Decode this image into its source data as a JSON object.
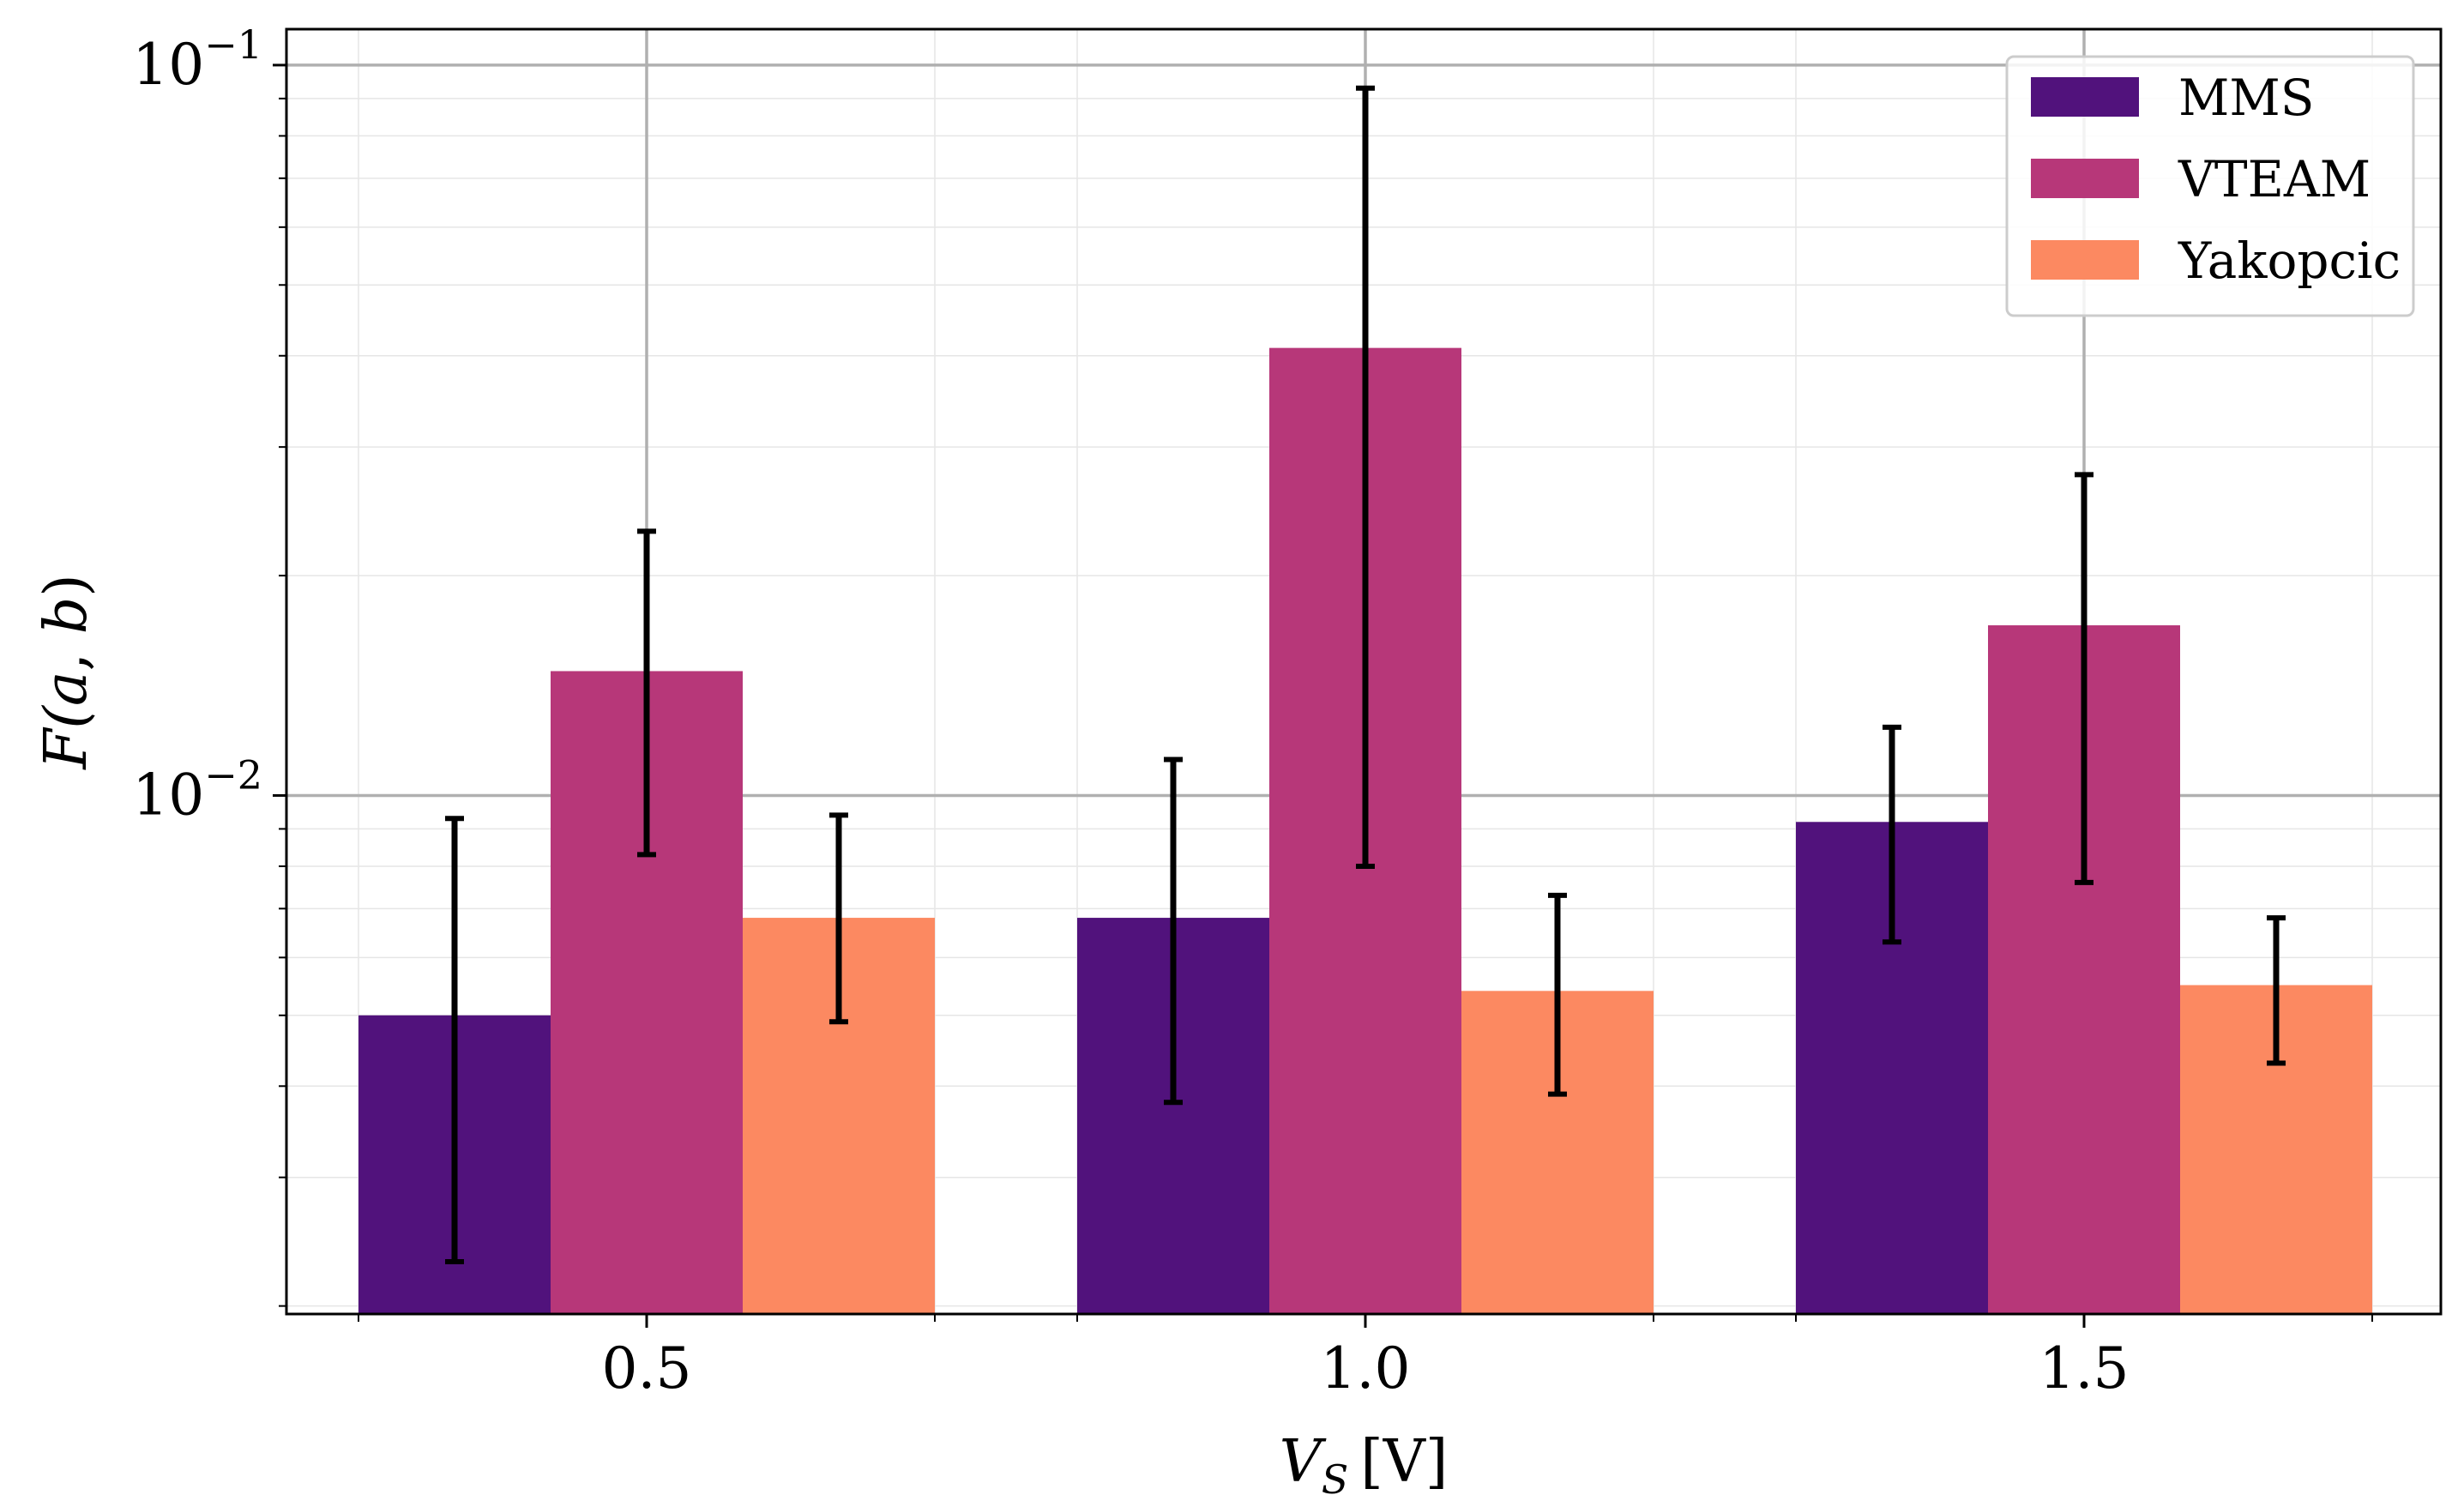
{
  "chart_data": {
    "type": "bar",
    "title": "",
    "xlabel": "V_S [V]",
    "xlabel_parts": {
      "var": "V",
      "sub": "S",
      "unit": "[V]"
    },
    "ylabel": "F(a, b)",
    "ylabel_parts": {
      "open": "F(",
      "a": "a",
      "comma": ", ",
      "b": "b",
      "close": ")"
    },
    "yscale": "log",
    "ylim": [
      0.00195,
      0.112
    ],
    "grid": true,
    "legend_position": "top-right",
    "categories": [
      "0.5",
      "1.0",
      "1.5"
    ],
    "yticks": [
      {
        "value": 0.1,
        "base": "10",
        "exp": "−1"
      },
      {
        "value": 0.01,
        "base": "10",
        "exp": "−2"
      }
    ],
    "series": [
      {
        "name": "MMS",
        "color": "#51127c",
        "values": [
          0.005,
          0.0068,
          0.0092
        ],
        "err_low": [
          0.0023,
          0.0038,
          0.0063
        ],
        "err_high": [
          0.0093,
          0.0112,
          0.0124
        ]
      },
      {
        "name": "VTEAM",
        "color": "#b73779",
        "values": [
          0.0148,
          0.041,
          0.0171
        ],
        "err_low": [
          0.0083,
          0.008,
          0.0076
        ],
        "err_high": [
          0.023,
          0.093,
          0.0275
        ]
      },
      {
        "name": "Yakopcic",
        "color": "#fc8961",
        "values": [
          0.0068,
          0.0054,
          0.0055
        ],
        "err_low": [
          0.0049,
          0.0039,
          0.0043
        ],
        "err_high": [
          0.0094,
          0.0073,
          0.0068
        ]
      }
    ]
  }
}
